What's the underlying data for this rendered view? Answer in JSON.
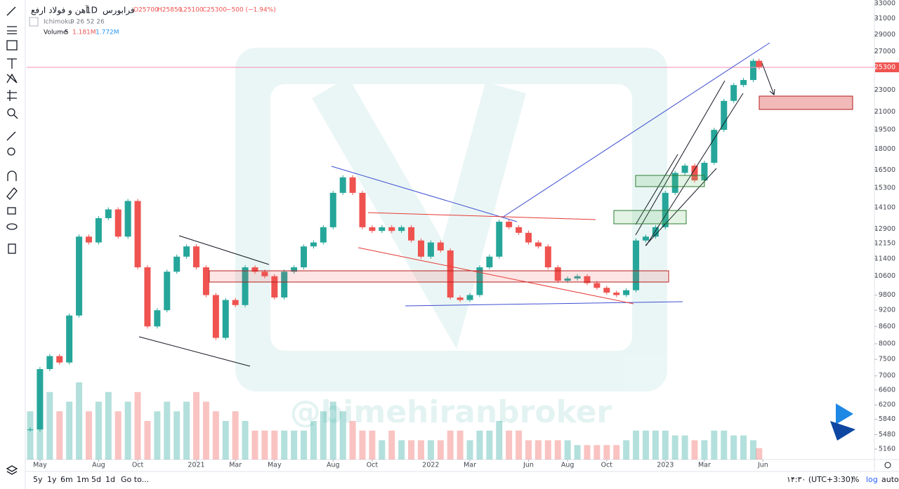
{
  "header": {
    "symbol": "آهن و فولاد ارفع",
    "interval": "1D",
    "exchange": "فرابورس",
    "open": "O25700",
    "high": "H25850",
    "low": "L25100",
    "close": "C25300",
    "change": "−500 (−1.94%)"
  },
  "indicators": [
    {
      "name": "Ichimoku",
      "params": "9 26 52 26"
    },
    {
      "name": "Volume",
      "params": "5",
      "values": [
        "1.181M",
        "1.772M"
      ]
    }
  ],
  "chart_data": {
    "type": "candlestick",
    "x": [
      -0.5,
      0,
      0.5,
      1,
      1.5,
      2,
      2.5,
      3,
      3.5,
      4,
      4.5,
      5,
      5.5,
      6,
      6.5,
      7,
      7.5,
      8,
      8.5,
      9,
      9.5,
      10,
      10.5,
      11,
      11.5,
      12,
      12.5,
      13,
      13.5,
      14,
      14.5,
      15,
      15.5,
      16,
      16.5,
      17,
      17.5,
      18,
      18.5,
      19,
      19.5,
      20,
      20.5,
      21,
      21.5,
      22,
      22.5,
      23,
      23.5,
      24,
      24.5,
      25,
      25.5,
      26,
      26.5,
      27,
      27.5,
      28,
      28.5,
      29,
      29.5,
      30,
      30.5,
      31,
      31.5,
      32,
      32.5,
      33,
      33.5,
      34,
      34.5,
      35,
      35.5,
      36,
      36.5,
      36.8
    ],
    "values": [
      5600,
      7200,
      7600,
      7400,
      9000,
      12500,
      12200,
      13500,
      14000,
      12500,
      14500,
      11000,
      8600,
      9200,
      10800,
      11500,
      12000,
      11000,
      9800,
      8200,
      9600,
      9400,
      11000,
      10800,
      10600,
      9700,
      10800,
      11000,
      12000,
      12200,
      13000,
      15000,
      16000,
      15000,
      13000,
      12800,
      13000,
      12800,
      13000,
      12300,
      11500,
      12200,
      11800,
      9700,
      9600,
      9800,
      11000,
      11500,
      13300,
      13000,
      12700,
      12200,
      12000,
      11000,
      10400,
      10500,
      10600,
      10300,
      10100,
      9900,
      9800,
      10000,
      12300,
      12500,
      13000,
      15000,
      16300,
      16800,
      15800,
      17000,
      19500,
      22000,
      23500,
      24000,
      26000,
      25300
    ],
    "volume": [
      5,
      6,
      7,
      5,
      6,
      8,
      5,
      6,
      7,
      5,
      6,
      7,
      4,
      5,
      6,
      5,
      6,
      7,
      6,
      5,
      4,
      5,
      4,
      3,
      3,
      3,
      3,
      3,
      3,
      4,
      5,
      6,
      5,
      4,
      3,
      3,
      2,
      3,
      2,
      2,
      2,
      2,
      2,
      3,
      3,
      2,
      3,
      3,
      4,
      3,
      3,
      2,
      2,
      2,
      2,
      2,
      1.5,
      1.5,
      1.5,
      1.5,
      1.5,
      2,
      3,
      3,
      3,
      3,
      2.5,
      2.5,
      2,
      2,
      3,
      3,
      2.5,
      2.5,
      2,
      1.181
    ],
    "up_color": "#26a69a",
    "down_color": "#ef5350",
    "log": true,
    "ylim": [
      4940,
      33490
    ],
    "yticks": [
      33000,
      31000,
      29000,
      27000,
      23000,
      21000,
      19500,
      18000,
      16500,
      15300,
      14100,
      12900,
      12150,
      11400,
      10600,
      9800,
      9200,
      8600,
      8000,
      7500,
      7000,
      6600,
      6200,
      5840,
      5480,
      5160
    ],
    "xlim": [
      -0.68,
      42.7
    ],
    "xticks": [
      {
        "value": 0,
        "label": "May"
      },
      {
        "value": 3,
        "label": "Aug"
      },
      {
        "value": 5,
        "label": "Oct"
      },
      {
        "value": 8,
        "label": "2021"
      },
      {
        "value": 10,
        "label": "Mar"
      },
      {
        "value": 12,
        "label": "May"
      },
      {
        "value": 15,
        "label": "Aug"
      },
      {
        "value": 17,
        "label": "Oct"
      },
      {
        "value": 20,
        "label": "2022"
      },
      {
        "value": 22,
        "label": "Mar"
      },
      {
        "value": 25,
        "label": "Jun"
      },
      {
        "value": 27,
        "label": "Aug"
      },
      {
        "value": 29,
        "label": "Oct"
      },
      {
        "value": 32,
        "label": "2023"
      },
      {
        "value": 34,
        "label": "Mar"
      },
      {
        "value": 37,
        "label": "Jun"
      }
    ],
    "last_price": 25300
  },
  "watermark": "@bimehiranbroker",
  "bottom_bar": {
    "ranges": [
      "5y",
      "1y",
      "6m",
      "1m",
      "5d",
      "1d"
    ],
    "goto": "Go to...",
    "time": "۱۴:۳۰ (UTC+3:30)",
    "toggles": [
      "%",
      "log",
      "auto"
    ]
  }
}
